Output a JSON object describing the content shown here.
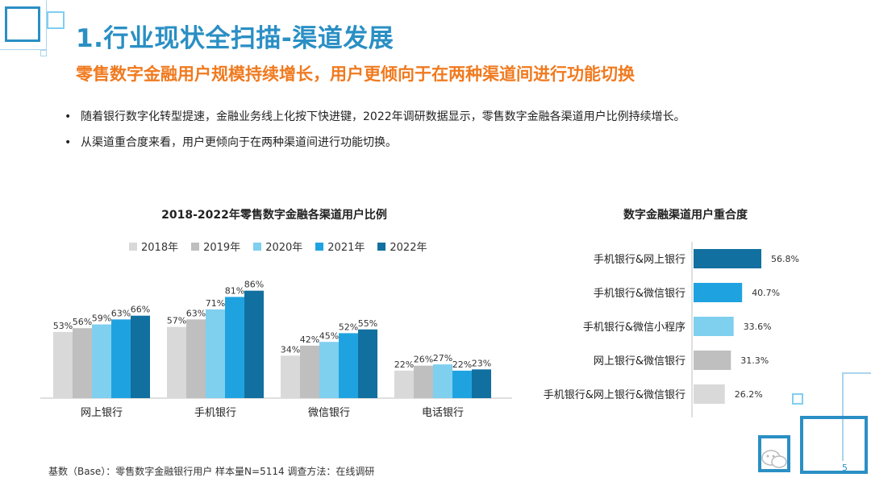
{
  "header": {
    "title": "1.行业现状全扫描-渠道发展",
    "subtitle": "零售数字金融用户规模持续增长，用户更倾向于在两种渠道间进行功能切换"
  },
  "bullets": [
    "随着银行数字化转型提速，金融业务线上化按下快进键，2022年调研数据显示，零售数字金融各渠道用户比例持续增长。",
    "从渠道重合度来看，用户更倾向于在两种渠道间进行功能切换。"
  ],
  "bullet_symbol": "•",
  "chart_data": [
    {
      "type": "bar",
      "title": "2018-2022年零售数字金融各渠道用户比例",
      "categories": [
        "网上银行",
        "手机银行",
        "微信银行",
        "电话银行"
      ],
      "series": [
        {
          "name": "2018年",
          "color": "#d9d9d9",
          "values": [
            53,
            57,
            34,
            22
          ],
          "labels": [
            "53%",
            "57%",
            "34%",
            "22%"
          ]
        },
        {
          "name": "2019年",
          "color": "#bfbfbf",
          "values": [
            56,
            63,
            42,
            26
          ],
          "labels": [
            "56%",
            "63%",
            "42%",
            "26%"
          ]
        },
        {
          "name": "2020年",
          "color": "#7fcfef",
          "values": [
            59,
            71,
            45,
            27
          ],
          "labels": [
            "59%",
            "71%",
            "45%",
            "27%"
          ]
        },
        {
          "name": "2021年",
          "color": "#1fa3e0",
          "values": [
            63,
            81,
            52,
            22
          ],
          "labels": [
            "63%",
            "81%",
            "52%",
            "22%"
          ]
        },
        {
          "name": "2022年",
          "color": "#11709f",
          "values": [
            66,
            86,
            55,
            23
          ],
          "labels": [
            "66%",
            "86%",
            "55%",
            "23%"
          ]
        }
      ],
      "ylim": [
        0,
        100
      ],
      "legend_position": "top"
    },
    {
      "type": "bar",
      "orientation": "horizontal",
      "title": "数字金融渠道用户重合度",
      "categories": [
        "手机银行&网上银行",
        "手机银行&微信银行",
        "手机银行&微信小程序",
        "网上银行&微信银行",
        "手机银行&网上银行&微信银行"
      ],
      "values": [
        56.8,
        40.7,
        33.6,
        31.3,
        26.2
      ],
      "labels": [
        "56.8%",
        "40.7%",
        "33.6%",
        "31.3%",
        "26.2%"
      ],
      "colors": [
        "#11709f",
        "#1fa3e0",
        "#7fcfef",
        "#bfbfbf",
        "#d9d9d9"
      ],
      "xlim": [
        0,
        60
      ]
    }
  ],
  "footnote": "基数（Base）：零售数字金融银行用户   样本量N=5114   调查方法：在线调研",
  "page_number": "5",
  "colors": {
    "title": "#2a8fc4",
    "subtitle": "#f07a1f",
    "frame": "#2a8fc4",
    "frame_light": "#a9d5ec"
  }
}
